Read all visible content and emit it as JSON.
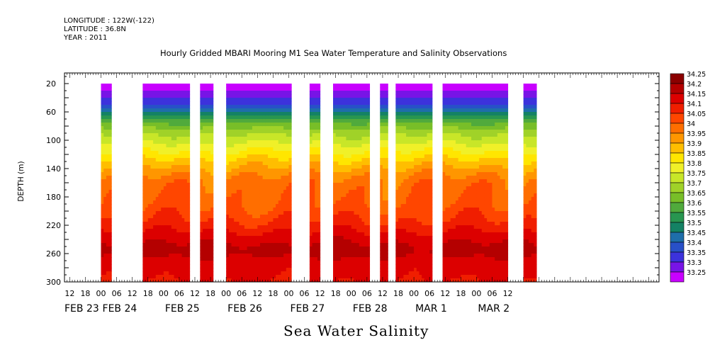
{
  "header": {
    "longitude": "LONGITUDE : 122W(-122)",
    "latitude": "LATITUDE : 36.8N",
    "year": "YEAR : 2011"
  },
  "chart_data": {
    "type": "heatmap",
    "title": "Hourly Gridded MBARI Mooring M1 Sea Water Temperature and Salinity Observations",
    "xlabel": "Sea Water Salinity",
    "ylabel": "DEPTH (m)",
    "x_unit": "hours since 2011-02-23 00:00",
    "xlim": [
      10,
      238
    ],
    "ylim": [
      300,
      5
    ],
    "y_ticks": [
      20,
      60,
      100,
      140,
      180,
      220,
      260,
      300
    ],
    "x_hour_labels": [
      "12",
      "18",
      "00",
      "06",
      "12",
      "18",
      "00",
      "06",
      "12",
      "18",
      "00",
      "06",
      "12",
      "18",
      "00",
      "06",
      "12",
      "18",
      "00",
      "06",
      "12",
      "18",
      "00",
      "06",
      "12",
      "18",
      "00",
      "06",
      "12"
    ],
    "x_day_labels": [
      "FEB 23",
      "FEB 24",
      "FEB 25",
      "FEB 26",
      "FEB 27",
      "FEB 28",
      "MAR  1",
      "MAR  2"
    ],
    "colorbar": {
      "levels": [
        "34.25",
        "34.2",
        "34.15",
        "34.1",
        "34.05",
        "34",
        "33.95",
        "33.9",
        "33.85",
        "33.8",
        "33.75",
        "33.7",
        "33.65",
        "33.6",
        "33.55",
        "33.5",
        "33.45",
        "33.4",
        "33.35",
        "33.3",
        "33.25"
      ],
      "colors": [
        "#8b0000",
        "#b40000",
        "#dc0000",
        "#f01e00",
        "#ff4600",
        "#ff6e00",
        "#ff9600",
        "#ffbe00",
        "#ffe600",
        "#f0f028",
        "#c8e628",
        "#a0d228",
        "#78be28",
        "#50aa3c",
        "#289650",
        "#148264",
        "#1e6eaa",
        "#2850c8",
        "#3c32dc",
        "#7814e6",
        "#c800ff"
      ]
    },
    "data_segments_hours": [
      [
        24,
        28
      ],
      [
        40,
        58
      ],
      [
        62,
        67
      ],
      [
        72,
        97
      ],
      [
        104,
        108
      ],
      [
        113,
        127
      ],
      [
        131,
        134
      ],
      [
        137,
        151
      ],
      [
        155,
        180
      ],
      [
        186,
        191
      ]
    ],
    "profile_depth_m": [
      20,
      30,
      45,
      60,
      70,
      80,
      90,
      100,
      110,
      120,
      130,
      140,
      150,
      160,
      175,
      190,
      205,
      220,
      235,
      245,
      255,
      265,
      280,
      300
    ],
    "profile_salinity": [
      33.27,
      33.3,
      33.37,
      33.5,
      33.6,
      33.68,
      33.74,
      33.78,
      33.83,
      33.87,
      33.92,
      33.96,
      34.0,
      34.03,
      34.04,
      34.05,
      34.08,
      34.12,
      34.17,
      34.2,
      34.22,
      34.2,
      34.16,
      34.15
    ]
  }
}
